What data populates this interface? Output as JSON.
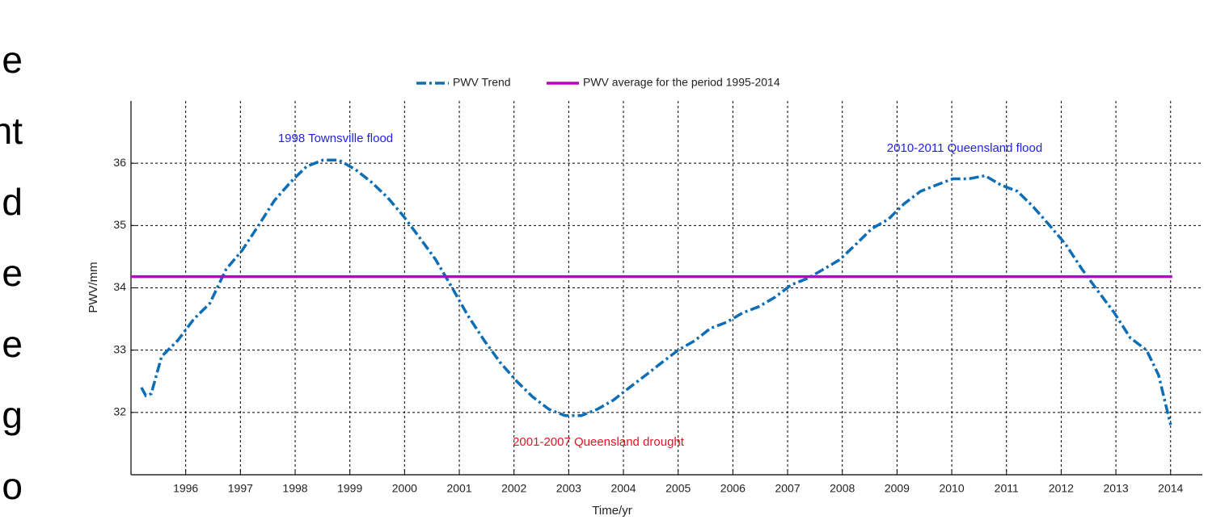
{
  "side_text": [
    "e",
    "nt",
    "d",
    "e",
    "e",
    "g",
    "o"
  ],
  "chart_data": {
    "type": "line",
    "xlabel": "Time/yr",
    "ylabel": "PWV/mm",
    "xlim": [
      1995,
      2014.58
    ],
    "ylim": [
      31,
      37
    ],
    "xticks": [
      1996,
      1997,
      1998,
      1999,
      2000,
      2001,
      2002,
      2003,
      2004,
      2005,
      2006,
      2007,
      2008,
      2009,
      2010,
      2011,
      2012,
      2013,
      2014
    ],
    "yticks": [
      32,
      33,
      34,
      35,
      36
    ],
    "grid": true,
    "legend": "top",
    "annotations": [
      {
        "text": "1998 Townsville flood",
        "color": "#2222ee"
      },
      {
        "text": "2001-2007 Queensland drought",
        "color": "#ee1122"
      },
      {
        "text": "2010-2011 Queensland flood",
        "color": "#2222ee"
      }
    ],
    "series": [
      {
        "name": "PWV Trend",
        "color": "#0d6eb5",
        "style": "dashdot",
        "x": [
          1995.19,
          1995.27,
          1995.37,
          1995.56,
          1995.85,
          1996.15,
          1996.44,
          1996.74,
          1997.03,
          1997.33,
          1997.62,
          1997.92,
          1998.21,
          1998.51,
          1998.8,
          1999.1,
          1999.39,
          1999.69,
          1999.98,
          2000.28,
          2000.57,
          2000.87,
          2001.16,
          2001.46,
          2001.75,
          2002.05,
          2002.34,
          2002.64,
          2002.93,
          2003.23,
          2003.52,
          2003.82,
          2004.11,
          2004.41,
          2004.7,
          2005.0,
          2005.3,
          2005.59,
          2005.89,
          2006.18,
          2006.48,
          2006.77,
          2007.07,
          2007.36,
          2007.66,
          2007.95,
          2008.25,
          2008.54,
          2008.84,
          2009.13,
          2009.43,
          2009.72,
          2010.02,
          2010.31,
          2010.61,
          2010.9,
          2011.2,
          2011.49,
          2011.79,
          2012.08,
          2012.38,
          2012.67,
          2012.97,
          2013.26,
          2013.56,
          2013.78,
          2014.0
        ],
        "values": [
          32.4,
          32.27,
          32.3,
          32.9,
          33.15,
          33.5,
          33.75,
          34.3,
          34.6,
          35.0,
          35.4,
          35.7,
          35.95,
          36.05,
          36.05,
          35.9,
          35.7,
          35.45,
          35.15,
          34.8,
          34.45,
          34.0,
          33.55,
          33.15,
          32.8,
          32.5,
          32.25,
          32.05,
          31.95,
          31.95,
          32.05,
          32.2,
          32.4,
          32.6,
          32.8,
          33.0,
          33.15,
          33.35,
          33.45,
          33.6,
          33.7,
          33.85,
          34.05,
          34.15,
          34.3,
          34.45,
          34.7,
          34.95,
          35.1,
          35.35,
          35.55,
          35.65,
          35.75,
          35.75,
          35.8,
          35.65,
          35.55,
          35.3,
          35.0,
          34.7,
          34.3,
          33.95,
          33.6,
          33.2,
          33.0,
          32.6,
          31.8
        ]
      },
      {
        "name": "PWV average for the period 1995-2014",
        "color": "#c000c0",
        "style": "solid",
        "x": [
          1995,
          2014.03
        ],
        "values": [
          34.18,
          34.18
        ]
      }
    ]
  }
}
